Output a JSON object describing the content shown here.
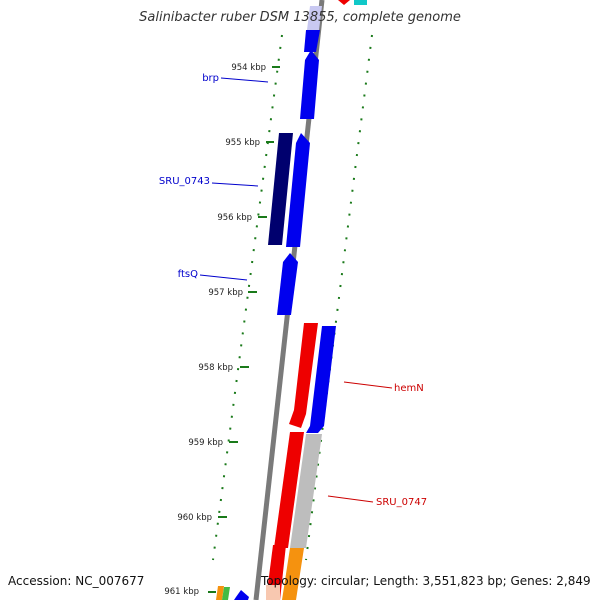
{
  "title": "Salinibacter ruber DSM 13855, complete genome",
  "accession": "Accession: NC_007677",
  "summary": "Topology: circular; Length: 3,551,823 bp; Genes: 2,849",
  "scale_labels": [
    "954 kbp",
    "955 kbp",
    "956 kbp",
    "957 kbp",
    "958 kbp",
    "959 kbp",
    "960 kbp",
    "961 kbp"
  ],
  "gene_labels": [
    {
      "text": "brp",
      "strand": "forward"
    },
    {
      "text": "SRU_0743",
      "strand": "forward"
    },
    {
      "text": "ftsQ",
      "strand": "forward"
    },
    {
      "text": "hemN",
      "strand": "reverse"
    },
    {
      "text": "SRU_0747",
      "strand": "reverse"
    }
  ],
  "colors": {
    "forward_label": "#0000cc",
    "reverse_label": "#cc0000",
    "backbone": "#7a7a7a",
    "tick": "#1a7a1a",
    "blue": "#0000ee",
    "dark_blue": "#00006e",
    "red": "#ee0000",
    "grey": "#bdbdbd",
    "orange": "#f5920f"
  }
}
